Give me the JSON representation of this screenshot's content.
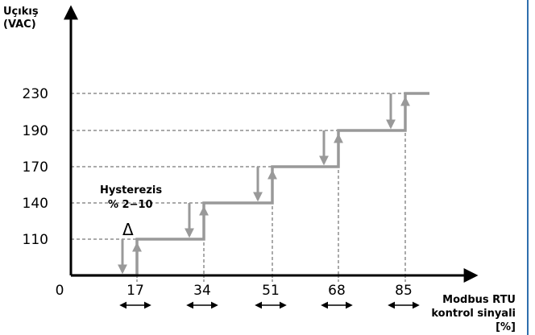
{
  "chart_data": {
    "type": "line",
    "ylabel": [
      "Uçıkış",
      "(VAC)"
    ],
    "xlabel": [
      "Modbus RTU",
      "kontrol sinyali",
      "[%]"
    ],
    "origin_label": "0",
    "x_ticks": [
      17,
      34,
      51,
      68,
      85
    ],
    "y_ticks": [
      110,
      140,
      170,
      190,
      230
    ],
    "xlim": [
      0,
      100
    ],
    "ylim": [
      0,
      250
    ],
    "grid": "dashed guides at tick values",
    "series": [
      {
        "points": [
          [
            0,
            0
          ],
          [
            17,
            0
          ],
          [
            17,
            110
          ],
          [
            34,
            110
          ],
          [
            34,
            140
          ],
          [
            51,
            140
          ],
          [
            51,
            170
          ],
          [
            68,
            170
          ],
          [
            68,
            190
          ],
          [
            85,
            190
          ],
          [
            85,
            230
          ],
          [
            91,
            230
          ]
        ]
      }
    ],
    "hysteresis_arrows": [
      {
        "x": 17,
        "from": 0,
        "to": 110
      },
      {
        "x": 34,
        "from": 110,
        "to": 140
      },
      {
        "x": 51,
        "from": 140,
        "to": 170
      },
      {
        "x": 68,
        "from": 170,
        "to": 190
      },
      {
        "x": 85,
        "from": 190,
        "to": 230
      }
    ],
    "annotations": {
      "hysteresis_title": "Hysterezis",
      "hysteresis_range": "% 2−10",
      "delta": "Δ"
    },
    "colors": {
      "step": "#999999",
      "axis": "#000000",
      "guide": "#555555",
      "frame": "#2f6fad"
    }
  }
}
